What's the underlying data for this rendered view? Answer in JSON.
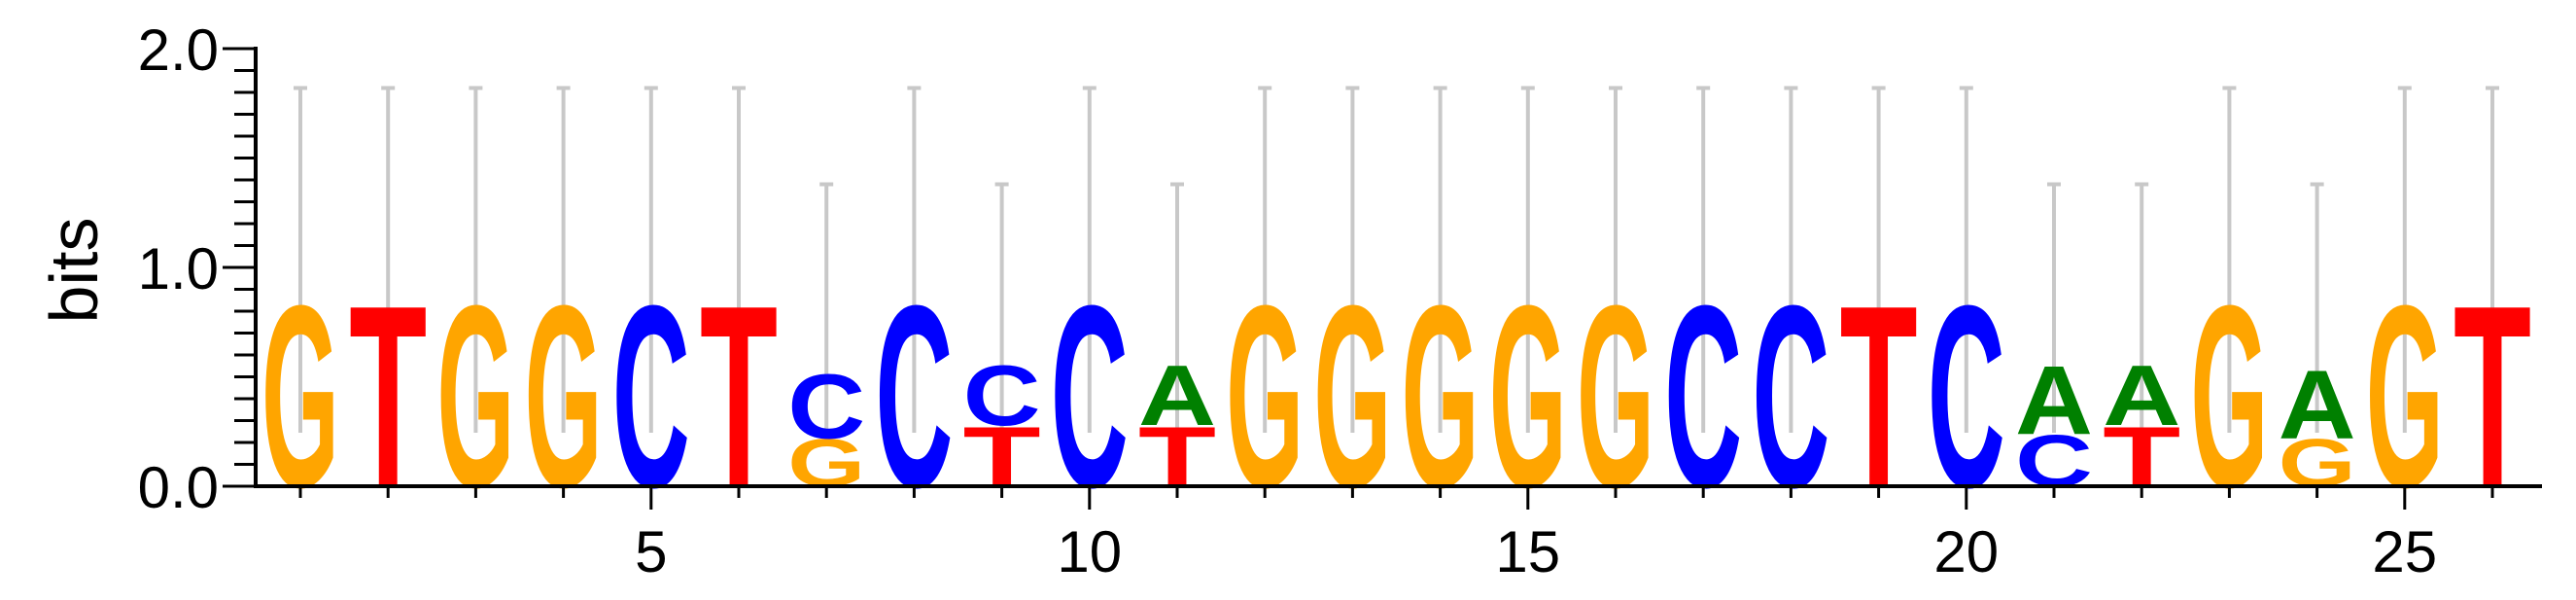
{
  "chart_data": {
    "type": "sequence-logo",
    "ylabel": "bits",
    "ylim": [
      0,
      2.0
    ],
    "yticks": [
      {
        "value": 0.0,
        "label": "0.0"
      },
      {
        "value": 1.0,
        "label": "1.0"
      },
      {
        "value": 2.0,
        "label": "2.0"
      }
    ],
    "xticks": [
      {
        "value": 5,
        "label": "5"
      },
      {
        "value": 10,
        "label": "10"
      },
      {
        "value": 15,
        "label": "15"
      },
      {
        "value": 20,
        "label": "20"
      },
      {
        "value": 25,
        "label": "25"
      }
    ],
    "xlim": [
      0.4,
      26.5
    ],
    "colors": {
      "A": "#008000",
      "C": "#0000ff",
      "G": "#ffa500",
      "T": "#ff0000",
      "errorbar": "#c8c8c8"
    },
    "positions": [
      {
        "pos": 1,
        "error_top": 1.82,
        "stack": [
          {
            "letter": "G",
            "bits": 0.85
          }
        ]
      },
      {
        "pos": 2,
        "error_top": 1.82,
        "stack": [
          {
            "letter": "T",
            "bits": 0.85
          }
        ]
      },
      {
        "pos": 3,
        "error_top": 1.82,
        "stack": [
          {
            "letter": "G",
            "bits": 0.85
          }
        ]
      },
      {
        "pos": 4,
        "error_top": 1.82,
        "stack": [
          {
            "letter": "G",
            "bits": 0.85
          }
        ]
      },
      {
        "pos": 5,
        "error_top": 1.82,
        "stack": [
          {
            "letter": "C",
            "bits": 0.85
          }
        ]
      },
      {
        "pos": 6,
        "error_top": 1.82,
        "stack": [
          {
            "letter": "T",
            "bits": 0.85
          }
        ]
      },
      {
        "pos": 7,
        "error_top": 1.38,
        "stack": [
          {
            "letter": "G",
            "bits": 0.22
          },
          {
            "letter": "C",
            "bits": 0.3
          }
        ]
      },
      {
        "pos": 8,
        "error_top": 1.82,
        "stack": [
          {
            "letter": "C",
            "bits": 0.85
          }
        ]
      },
      {
        "pos": 9,
        "error_top": 1.38,
        "stack": [
          {
            "letter": "T",
            "bits": 0.28
          },
          {
            "letter": "C",
            "bits": 0.28
          }
        ]
      },
      {
        "pos": 10,
        "error_top": 1.82,
        "stack": [
          {
            "letter": "C",
            "bits": 0.85
          }
        ]
      },
      {
        "pos": 11,
        "error_top": 1.38,
        "stack": [
          {
            "letter": "T",
            "bits": 0.28
          },
          {
            "letter": "A",
            "bits": 0.28
          }
        ]
      },
      {
        "pos": 12,
        "error_top": 1.82,
        "stack": [
          {
            "letter": "G",
            "bits": 0.85
          }
        ]
      },
      {
        "pos": 13,
        "error_top": 1.82,
        "stack": [
          {
            "letter": "G",
            "bits": 0.85
          }
        ]
      },
      {
        "pos": 14,
        "error_top": 1.82,
        "stack": [
          {
            "letter": "G",
            "bits": 0.85
          }
        ]
      },
      {
        "pos": 15,
        "error_top": 1.82,
        "stack": [
          {
            "letter": "G",
            "bits": 0.85
          }
        ]
      },
      {
        "pos": 16,
        "error_top": 1.82,
        "stack": [
          {
            "letter": "G",
            "bits": 0.85
          }
        ]
      },
      {
        "pos": 17,
        "error_top": 1.82,
        "stack": [
          {
            "letter": "C",
            "bits": 0.85
          }
        ]
      },
      {
        "pos": 18,
        "error_top": 1.82,
        "stack": [
          {
            "letter": "C",
            "bits": 0.85
          }
        ]
      },
      {
        "pos": 19,
        "error_top": 1.82,
        "stack": [
          {
            "letter": "T",
            "bits": 0.85
          }
        ]
      },
      {
        "pos": 20,
        "error_top": 1.82,
        "stack": [
          {
            "letter": "C",
            "bits": 0.85
          }
        ]
      },
      {
        "pos": 21,
        "error_top": 1.38,
        "stack": [
          {
            "letter": "C",
            "bits": 0.24
          },
          {
            "letter": "A",
            "bits": 0.32
          }
        ]
      },
      {
        "pos": 22,
        "error_top": 1.38,
        "stack": [
          {
            "letter": "T",
            "bits": 0.28
          },
          {
            "letter": "A",
            "bits": 0.28
          }
        ]
      },
      {
        "pos": 23,
        "error_top": 1.82,
        "stack": [
          {
            "letter": "G",
            "bits": 0.85
          }
        ]
      },
      {
        "pos": 24,
        "error_top": 1.38,
        "stack": [
          {
            "letter": "G",
            "bits": 0.22
          },
          {
            "letter": "A",
            "bits": 0.32
          }
        ]
      },
      {
        "pos": 25,
        "error_top": 1.82,
        "stack": [
          {
            "letter": "G",
            "bits": 0.85
          }
        ]
      },
      {
        "pos": 26,
        "error_top": 1.82,
        "stack": [
          {
            "letter": "T",
            "bits": 0.85
          }
        ]
      }
    ]
  }
}
